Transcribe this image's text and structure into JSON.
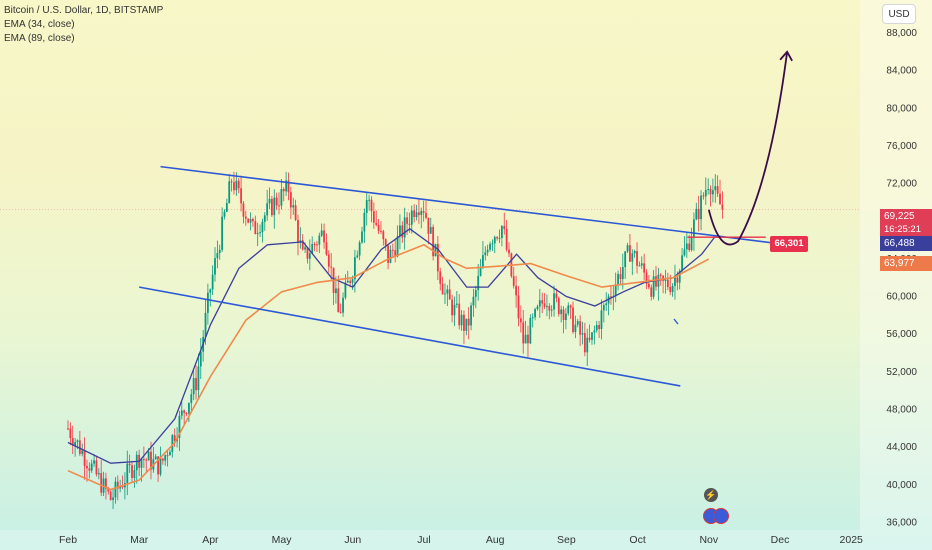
{
  "legend": {
    "symbol": "Bitcoin / U.S. Dollar, 1D, BITSTAMP",
    "ema34": "EMA (34, close)",
    "ema89": "EMA (89, close)"
  },
  "currency": "USD",
  "price_tags": {
    "close": "69,225",
    "countdown": "16:25:21",
    "ema34": "66,488",
    "ema89": "63,977"
  },
  "callout": "66,301",
  "icons": {
    "event": "lightning-icon",
    "flags": "us-flag-icon"
  },
  "colors": {
    "up": "#089981",
    "down": "#f23645",
    "ema34": "#3b3f9c",
    "ema89": "#f08a4b",
    "channel": "#2c57d6",
    "projection": "#3a0c4a",
    "callout": "#e8304f"
  },
  "chart_data": {
    "type": "line",
    "title": "Bitcoin / U.S. Dollar, 1D, BITSTAMP",
    "xlabel": "",
    "ylabel": "",
    "x_ticks": [
      "Feb",
      "Mar",
      "Apr",
      "May",
      "Jun",
      "Jul",
      "Aug",
      "Sep",
      "Oct",
      "Nov",
      "Dec",
      "2025"
    ],
    "y_ticks": [
      36000,
      40000,
      44000,
      48000,
      52000,
      56000,
      60000,
      64000,
      68000,
      72000,
      76000,
      80000,
      84000,
      88000
    ],
    "ylim": [
      35200,
      91500
    ],
    "grid": false,
    "price_path": {
      "x": [
        0.0,
        0.6,
        1.0,
        1.3,
        1.8,
        2.0,
        2.3,
        2.6,
        2.9,
        3.1,
        3.3,
        3.6,
        3.8,
        4.0,
        4.2,
        4.5,
        4.9,
        5.0,
        5.3,
        5.6,
        5.9,
        6.1,
        6.4,
        6.7,
        7.0,
        7.3,
        7.6,
        7.9,
        8.2,
        8.5,
        8.7,
        9.0,
        9.1,
        9.2
      ],
      "y": [
        46000,
        38500,
        43000,
        42000,
        51000,
        61000,
        72500,
        67000,
        70000,
        71500,
        64000,
        67000,
        58000,
        63000,
        70500,
        64000,
        70000,
        69500,
        60000,
        56500,
        66000,
        67500,
        55000,
        60000,
        58500,
        54500,
        60000,
        65000,
        61000,
        61500,
        65500,
        72500,
        70500,
        69225
      ]
    },
    "series": [
      {
        "name": "EMA (34, close)",
        "x": [
          0.0,
          0.6,
          1.0,
          1.5,
          2.0,
          2.4,
          2.8,
          3.3,
          3.7,
          4.0,
          4.4,
          4.8,
          5.2,
          5.6,
          5.9,
          6.3,
          6.6,
          7.0,
          7.4,
          7.8,
          8.1,
          8.5,
          8.9,
          9.1
        ],
        "y": [
          44500,
          42300,
          42500,
          47000,
          57000,
          63000,
          65500,
          65800,
          62000,
          61000,
          65000,
          67200,
          65000,
          61000,
          61000,
          64500,
          62000,
          60000,
          59000,
          60500,
          61500,
          62000,
          64500,
          66488
        ]
      },
      {
        "name": "EMA (89, close)",
        "x": [
          0.0,
          0.6,
          1.0,
          1.5,
          2.0,
          2.5,
          3.0,
          3.5,
          4.0,
          4.5,
          5.0,
          5.3,
          5.6,
          6.0,
          6.5,
          7.0,
          7.5,
          8.0,
          8.5,
          9.0
        ],
        "y": [
          41500,
          39500,
          40500,
          44500,
          51500,
          57500,
          60500,
          61500,
          62000,
          64000,
          65500,
          64000,
          63000,
          63200,
          63500,
          62200,
          61000,
          61500,
          62000,
          63977
        ]
      }
    ],
    "channel_upper": {
      "x": [
        1.3,
        10.0
      ],
      "y": [
        73800,
        65600
      ]
    },
    "channel_lower": {
      "x": [
        1.0,
        8.6
      ],
      "y": [
        61000,
        50500
      ]
    },
    "projection": {
      "x": [
        9.0,
        9.3,
        10.0,
        10.1
      ],
      "y": [
        69225,
        66301,
        73000,
        86000
      ]
    },
    "callout_level": {
      "x": [
        8.7,
        9.8
      ],
      "y": [
        66301,
        66301
      ]
    },
    "annotations": [
      "66,301"
    ]
  }
}
